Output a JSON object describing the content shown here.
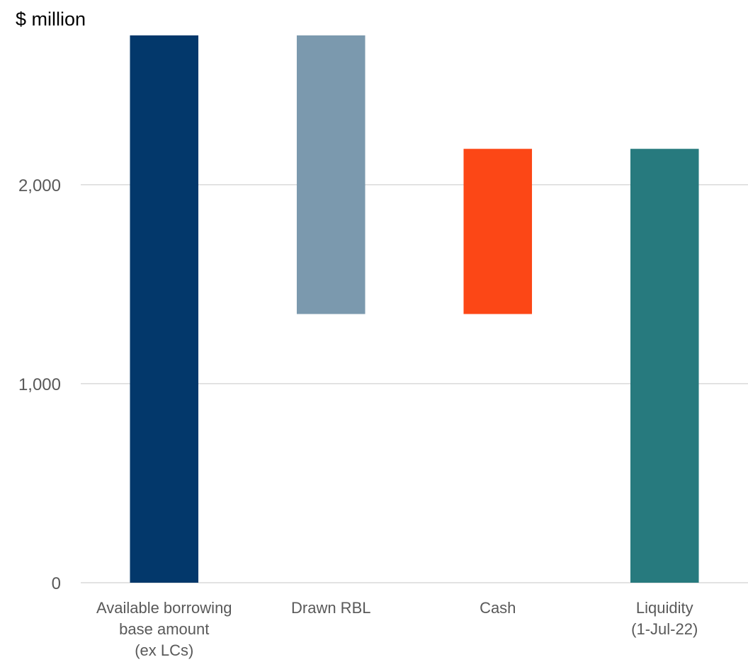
{
  "chart_data": {
    "type": "bar",
    "subtype": "waterfall",
    "unit_label": "$ million",
    "categories": [
      [
        "Available borrowing",
        "base amount",
        "(ex LCs)"
      ],
      [
        "Drawn RBL"
      ],
      [
        "Cash"
      ],
      [
        "Liquidity",
        "(1-Jul-22)"
      ]
    ],
    "bars": [
      {
        "base": 0,
        "top": 2750,
        "color": "#03386B"
      },
      {
        "base": 1350,
        "top": 2750,
        "color": "#7B99AE"
      },
      {
        "base": 1350,
        "top": 2180,
        "color": "#FC4716"
      },
      {
        "base": 0,
        "top": 2180,
        "color": "#277A7E"
      }
    ],
    "yticks": [
      {
        "value": 0,
        "label": "0"
      },
      {
        "value": 1000,
        "label": "1,000"
      },
      {
        "value": 2000,
        "label": "2,000"
      }
    ],
    "ylim": [
      0,
      2750
    ],
    "grid": true,
    "gridColor": "#D9D9D9"
  }
}
